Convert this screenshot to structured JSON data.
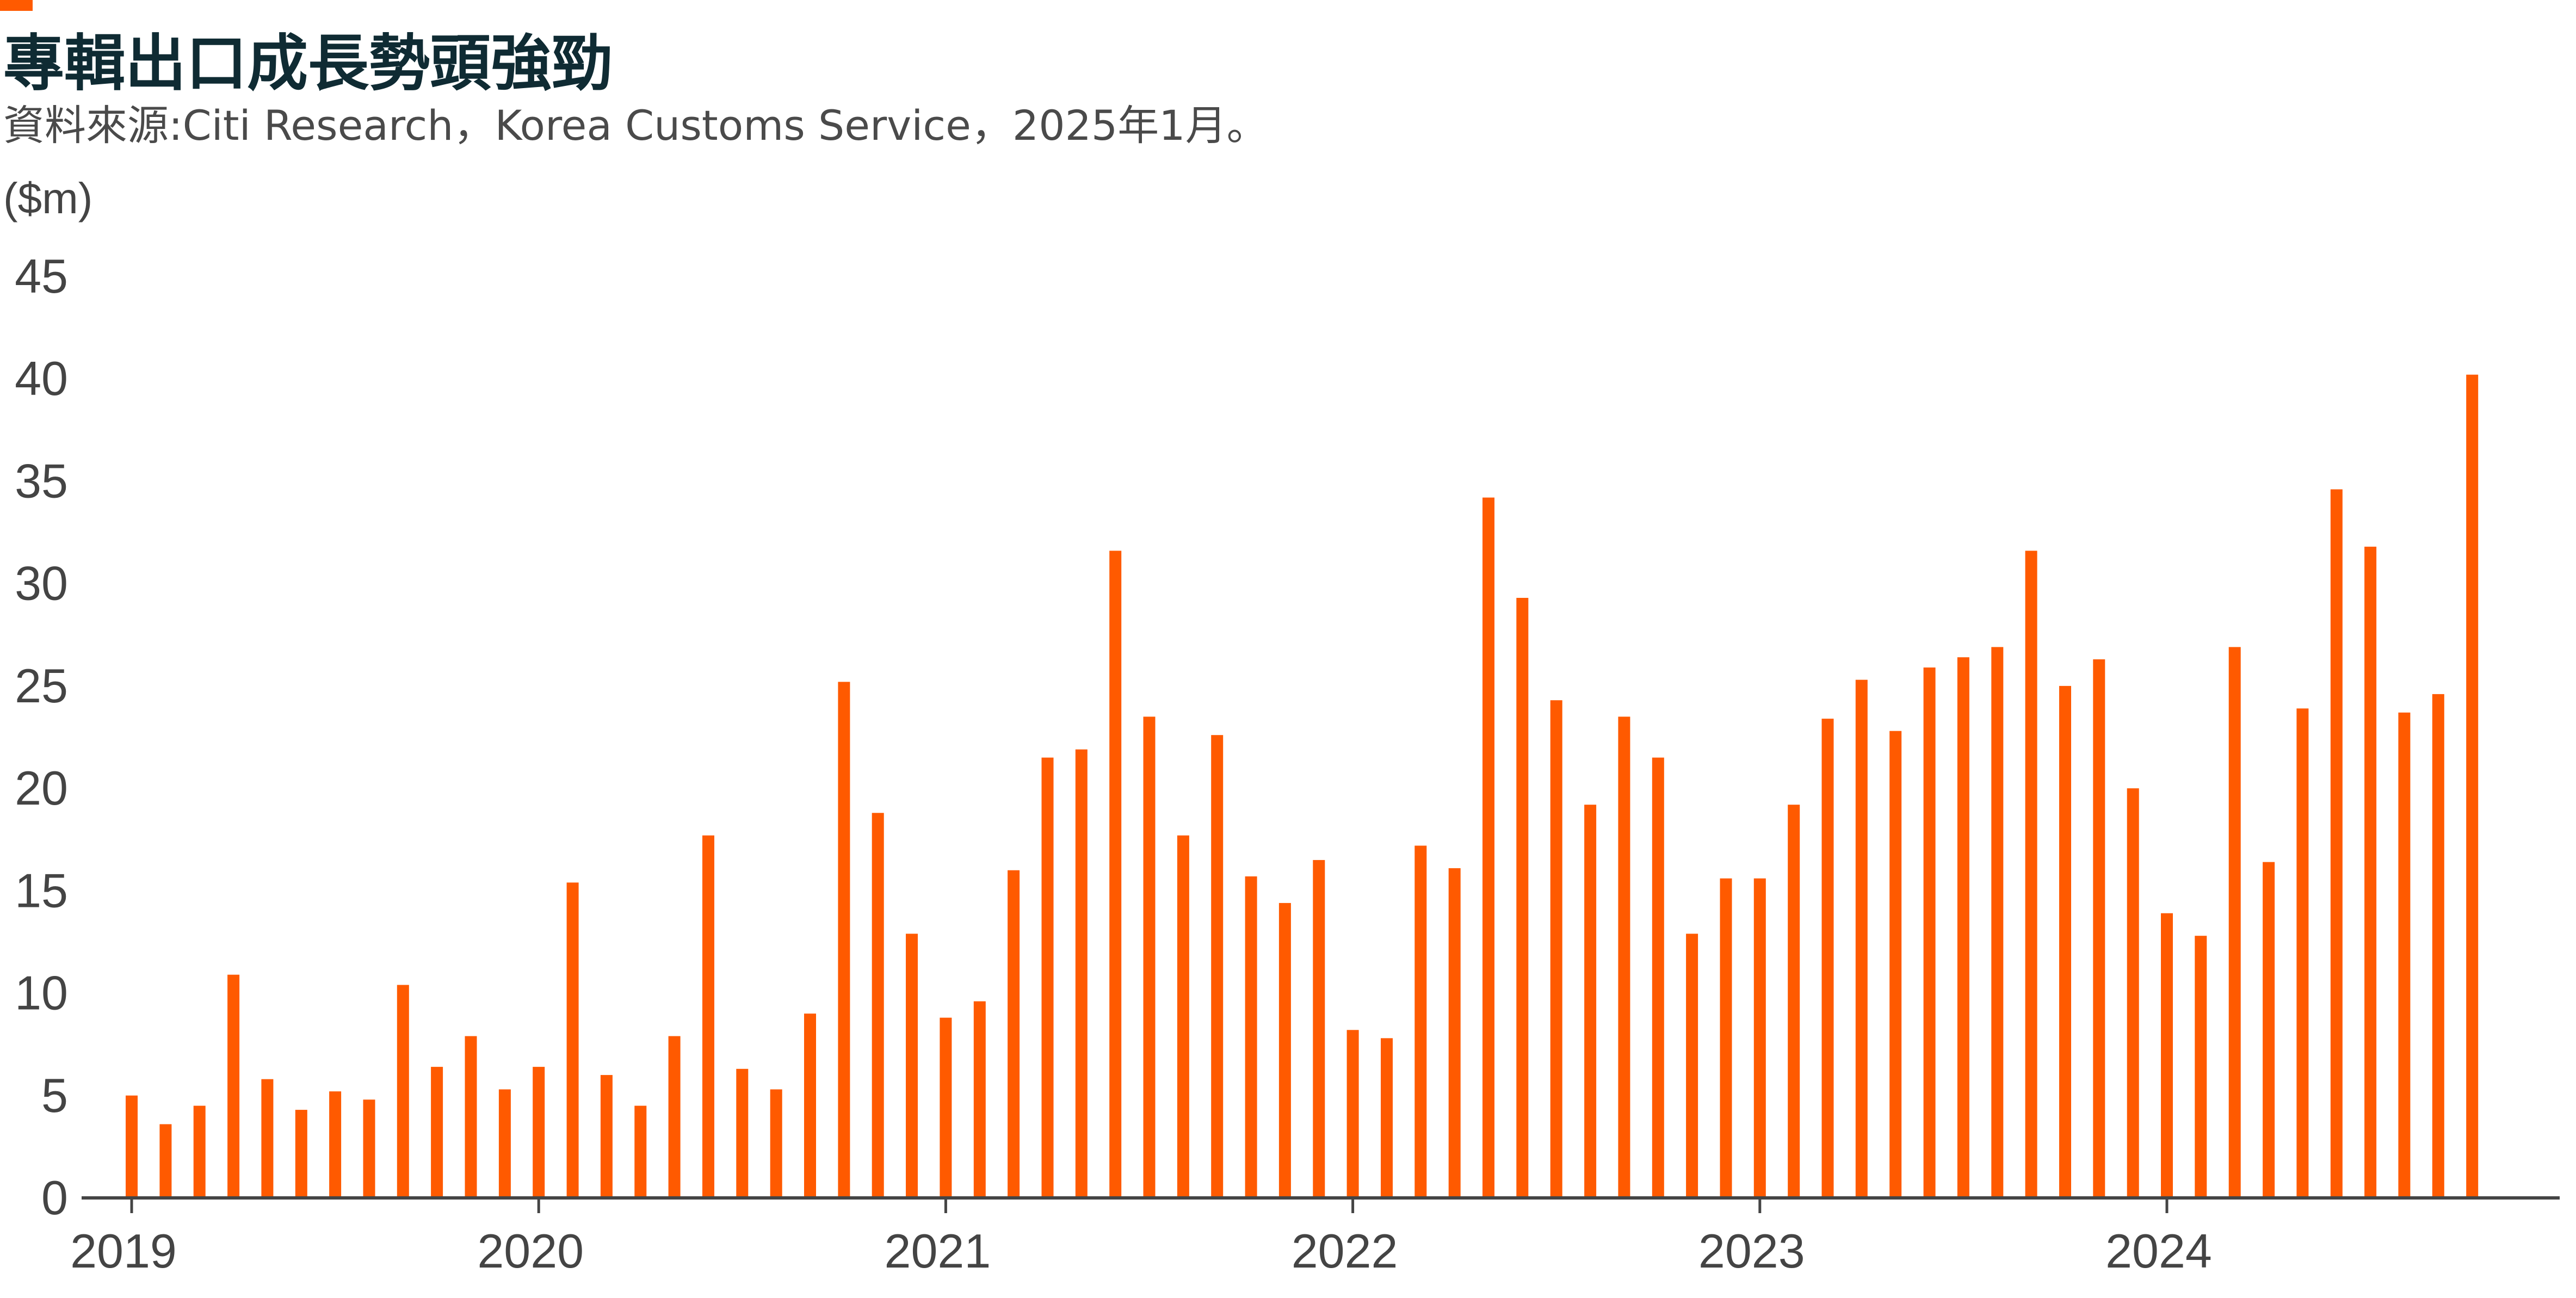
{
  "colors": {
    "accent": "#ff5a00",
    "bar": "#ff5a00",
    "axis": "#444444",
    "title": "#0f2b33",
    "text": "#444444"
  },
  "header": {
    "title": "專輯出口成長勢頭強勁",
    "source": "資料來源:Citi Research，Korea Customs Service，2025年1月。",
    "unit": "($m)"
  },
  "chart_data": {
    "type": "bar",
    "title": "專輯出口成長勢頭強勁",
    "ylabel": "($m)",
    "xlabel": "",
    "ylim": [
      0,
      45
    ],
    "yticks": [
      0,
      5,
      10,
      15,
      20,
      25,
      30,
      35,
      40,
      45
    ],
    "xticks": [
      "2019",
      "2020",
      "2021",
      "2022",
      "2023",
      "2024"
    ],
    "grid": false,
    "legend": "none",
    "categories": [
      "2019-01",
      "2019-02",
      "2019-03",
      "2019-04",
      "2019-05",
      "2019-06",
      "2019-07",
      "2019-08",
      "2019-09",
      "2019-10",
      "2019-11",
      "2019-12",
      "2020-01",
      "2020-02",
      "2020-03",
      "2020-04",
      "2020-05",
      "2020-06",
      "2020-07",
      "2020-08",
      "2020-09",
      "2020-10",
      "2020-11",
      "2020-12",
      "2021-01",
      "2021-02",
      "2021-03",
      "2021-04",
      "2021-05",
      "2021-06",
      "2021-07",
      "2021-08",
      "2021-09",
      "2021-10",
      "2021-11",
      "2021-12",
      "2022-01",
      "2022-02",
      "2022-03",
      "2022-04",
      "2022-05",
      "2022-06",
      "2022-07",
      "2022-08",
      "2022-09",
      "2022-10",
      "2022-11",
      "2022-12",
      "2023-01",
      "2023-02",
      "2023-03",
      "2023-04",
      "2023-05",
      "2023-06",
      "2023-07",
      "2023-08",
      "2023-09",
      "2023-10",
      "2023-11",
      "2023-12",
      "2024-01",
      "2024-02",
      "2024-03",
      "2024-04",
      "2024-05",
      "2024-06",
      "2024-07",
      "2024-08",
      "2024-09",
      "2024-10",
      "2024-11"
    ],
    "values": [
      5.0,
      3.6,
      4.5,
      10.9,
      5.8,
      4.3,
      5.2,
      4.8,
      10.4,
      6.4,
      7.9,
      5.3,
      6.4,
      15.4,
      6.0,
      4.5,
      7.9,
      17.7,
      6.3,
      5.3,
      9.0,
      25.2,
      18.8,
      12.9,
      8.8,
      9.6,
      16.0,
      21.5,
      21.9,
      31.6,
      23.5,
      17.7,
      22.6,
      15.7,
      14.4,
      16.5,
      8.2,
      7.8,
      17.2,
      16.1,
      34.2,
      29.3,
      24.3,
      19.2,
      23.5,
      21.5,
      12.9,
      15.6,
      15.6,
      19.2,
      23.4,
      25.3,
      22.8,
      25.9,
      26.4,
      26.9,
      31.6,
      25.0,
      26.3,
      20.0,
      13.9,
      12.8,
      26.9,
      16.4,
      23.9,
      34.6,
      31.8,
      23.7,
      24.6,
      40.2,
      0
    ]
  }
}
